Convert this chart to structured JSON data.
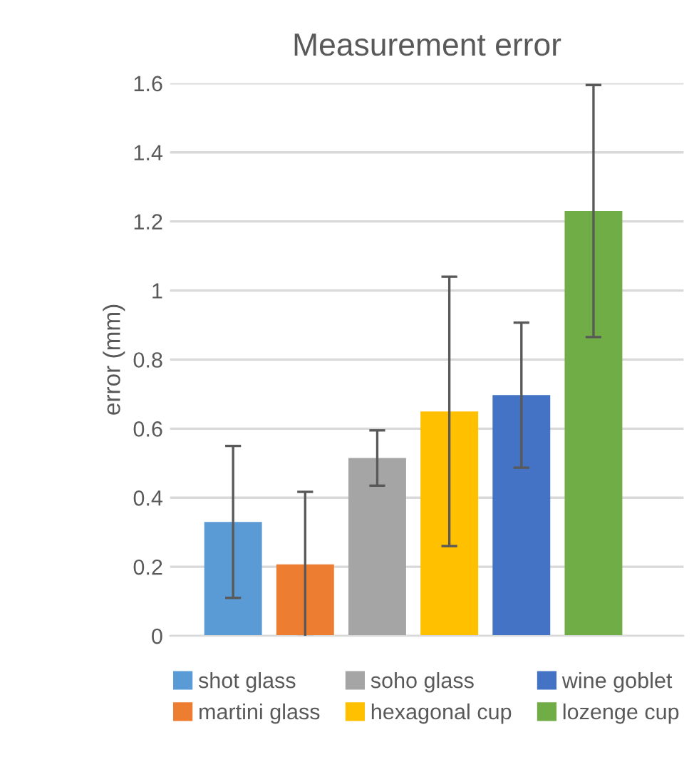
{
  "chart_data": {
    "type": "bar",
    "title": "Measurement error",
    "ylabel": "error (mm)",
    "categories": [
      null
    ],
    "series": [
      {
        "name": "shot glass",
        "color": "#5b9bd5",
        "values": [
          0.33
        ],
        "errors": [
          0.22
        ]
      },
      {
        "name": "martini glass",
        "color": "#ed7d31",
        "values": [
          0.207
        ],
        "errors": [
          0.21
        ]
      },
      {
        "name": "soho glass",
        "color": "#a5a5a5",
        "values": [
          0.515
        ],
        "errors": [
          0.08
        ]
      },
      {
        "name": "hexagonal cup",
        "color": "#ffc000",
        "values": [
          0.65
        ],
        "errors": [
          0.39
        ]
      },
      {
        "name": "wine goblet",
        "color": "#4472c4",
        "values": [
          0.697
        ],
        "errors": [
          0.21
        ]
      },
      {
        "name": "lozenge cup",
        "color": "#70ad47",
        "values": [
          1.23
        ],
        "errors": [
          0.365
        ]
      }
    ],
    "ylim": [
      0,
      1.6
    ],
    "yticks": [
      0,
      0.2,
      0.4,
      0.6,
      0.8,
      1,
      1.2,
      1.4,
      1.6
    ],
    "grid": "y",
    "legend": "bottom"
  }
}
